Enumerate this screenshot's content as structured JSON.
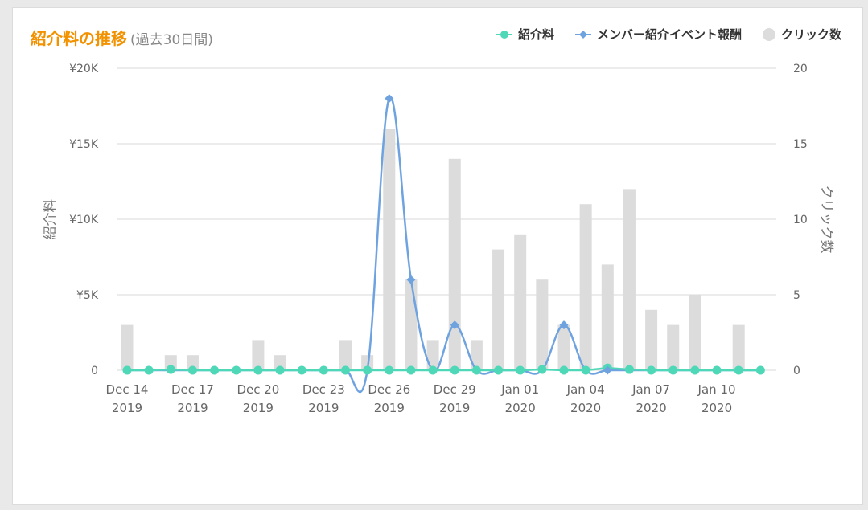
{
  "title": {
    "main": "紹介料の推移",
    "sub": "(過去30日間)"
  },
  "legend": [
    {
      "label": "紹介料",
      "color": "#4fd8b8",
      "marker": "circle-line"
    },
    {
      "label": "メンバー紹介イベント報酬",
      "color": "#6fa3e0",
      "marker": "diamond-line"
    },
    {
      "label": "クリック数",
      "color": "#dcdcdc",
      "marker": "circle"
    }
  ],
  "chart_data": {
    "type": "bar",
    "x": [
      "2019-12-14",
      "2019-12-15",
      "2019-12-16",
      "2019-12-17",
      "2019-12-18",
      "2019-12-19",
      "2019-12-20",
      "2019-12-21",
      "2019-12-22",
      "2019-12-23",
      "2019-12-24",
      "2019-12-25",
      "2019-12-26",
      "2019-12-27",
      "2019-12-28",
      "2019-12-29",
      "2019-12-30",
      "2019-12-31",
      "2020-01-01",
      "2020-01-02",
      "2020-01-03",
      "2020-01-04",
      "2020-01-05",
      "2020-01-06",
      "2020-01-07",
      "2020-01-08",
      "2020-01-09",
      "2020-01-10",
      "2020-01-11",
      "2020-01-12"
    ],
    "x_tick_labels": [
      [
        "Dec 14",
        "2019"
      ],
      [
        "Dec 17",
        "2019"
      ],
      [
        "Dec 20",
        "2019"
      ],
      [
        "Dec 23",
        "2019"
      ],
      [
        "Dec 26",
        "2019"
      ],
      [
        "Dec 29",
        "2019"
      ],
      [
        "Jan 01",
        "2020"
      ],
      [
        "Jan 04",
        "2020"
      ],
      [
        "Jan 07",
        "2020"
      ],
      [
        "Jan 10",
        "2020"
      ]
    ],
    "y_left": {
      "label": "紹介料",
      "ticks": [
        "0",
        "¥5K",
        "¥10K",
        "¥15K",
        "¥20K"
      ],
      "range": [
        0,
        20000
      ]
    },
    "y_right": {
      "label": "クリック数",
      "ticks": [
        "0",
        "5",
        "10",
        "15",
        "20"
      ],
      "range": [
        0,
        20
      ]
    },
    "grid": true,
    "legend_position": "top-right",
    "series": [
      {
        "name": "クリック数",
        "chart": "bar",
        "axis": "right",
        "color": "#dcdcdc",
        "values": [
          3,
          0,
          1,
          1,
          0,
          0,
          2,
          1,
          0,
          0,
          2,
          1,
          16,
          6,
          2,
          14,
          2,
          8,
          9,
          6,
          3,
          11,
          7,
          12,
          4,
          3,
          5,
          0,
          3,
          0
        ]
      },
      {
        "name": "紹介料",
        "chart": "line",
        "axis": "left",
        "color": "#4fd8b8",
        "values": [
          0,
          0,
          50,
          0,
          0,
          0,
          0,
          0,
          0,
          0,
          0,
          0,
          0,
          0,
          0,
          0,
          0,
          0,
          0,
          50,
          0,
          0,
          150,
          50,
          0,
          0,
          0,
          0,
          0,
          0
        ]
      },
      {
        "name": "メンバー紹介イベント報酬",
        "chart": "line",
        "axis": "left",
        "color": "#6fa3e0",
        "points": [
          [
            12,
            18000
          ],
          [
            13,
            6000
          ],
          [
            15,
            3000
          ],
          [
            20,
            3000
          ],
          [
            22,
            0
          ]
        ]
      }
    ]
  }
}
